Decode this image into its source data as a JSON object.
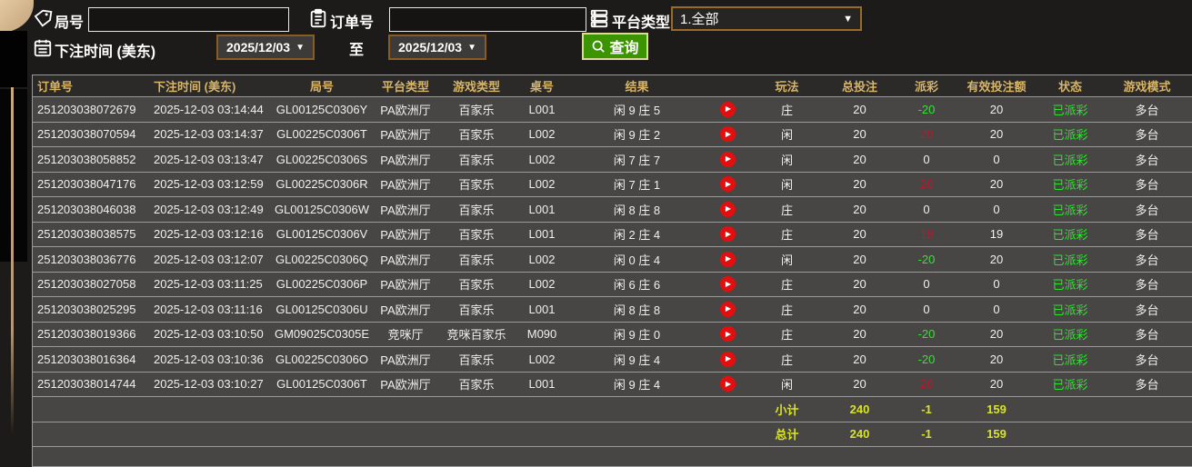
{
  "filters": {
    "round_no_label": "局号",
    "round_no_value": "",
    "order_no_label": "订单号",
    "order_no_value": "",
    "platform_label": "平台类型",
    "platform_value": "1.全部",
    "bet_time_label": "下注时间 (美东)",
    "date_from": "2025/12/03",
    "to_label": "至",
    "date_to": "2025/12/03",
    "query_label": "查询"
  },
  "colors": {
    "header_text": "#d7b468",
    "payout_positive": "#b51a31",
    "payout_negative": "#35e135",
    "status_green": "#2ee32e",
    "summary_yellow": "#d8e32a",
    "query_green": "#3c9400",
    "date_border_orange": "#8a5c22"
  },
  "table": {
    "columns": [
      "订单号",
      "下注时间 (美东)",
      "局号",
      "平台类型",
      "游戏类型",
      "桌号",
      "结果",
      "",
      "玩法",
      "总投注",
      "派彩",
      "有效投注额",
      "状态",
      "游戏模式"
    ],
    "rows": [
      {
        "order_no": "251203038072679",
        "bet_time": "2025-12-03 03:14:44",
        "round_no": "GL00125C0306Y",
        "platform": "PA欧洲厅",
        "game_type": "百家乐",
        "table_no": "L001",
        "result": "闲 9 庄 5",
        "bet_side": "庄",
        "total_bet": "20",
        "payout": "-20",
        "valid_bet": "20",
        "status": "已派彩",
        "mode": "多台"
      },
      {
        "order_no": "251203038070594",
        "bet_time": "2025-12-03 03:14:37",
        "round_no": "GL00225C0306T",
        "platform": "PA欧洲厅",
        "game_type": "百家乐",
        "table_no": "L002",
        "result": "闲 9 庄 2",
        "bet_side": "闲",
        "total_bet": "20",
        "payout": "20",
        "valid_bet": "20",
        "status": "已派彩",
        "mode": "多台"
      },
      {
        "order_no": "251203038058852",
        "bet_time": "2025-12-03 03:13:47",
        "round_no": "GL00225C0306S",
        "platform": "PA欧洲厅",
        "game_type": "百家乐",
        "table_no": "L002",
        "result": "闲 7 庄 7",
        "bet_side": "闲",
        "total_bet": "20",
        "payout": "0",
        "valid_bet": "0",
        "status": "已派彩",
        "mode": "多台"
      },
      {
        "order_no": "251203038047176",
        "bet_time": "2025-12-03 03:12:59",
        "round_no": "GL00225C0306R",
        "platform": "PA欧洲厅",
        "game_type": "百家乐",
        "table_no": "L002",
        "result": "闲 7 庄 1",
        "bet_side": "闲",
        "total_bet": "20",
        "payout": "20",
        "valid_bet": "20",
        "status": "已派彩",
        "mode": "多台"
      },
      {
        "order_no": "251203038046038",
        "bet_time": "2025-12-03 03:12:49",
        "round_no": "GL00125C0306W",
        "platform": "PA欧洲厅",
        "game_type": "百家乐",
        "table_no": "L001",
        "result": "闲 8 庄 8",
        "bet_side": "庄",
        "total_bet": "20",
        "payout": "0",
        "valid_bet": "0",
        "status": "已派彩",
        "mode": "多台"
      },
      {
        "order_no": "251203038038575",
        "bet_time": "2025-12-03 03:12:16",
        "round_no": "GL00125C0306V",
        "platform": "PA欧洲厅",
        "game_type": "百家乐",
        "table_no": "L001",
        "result": "闲 2 庄 4",
        "bet_side": "庄",
        "total_bet": "20",
        "payout": "19",
        "valid_bet": "19",
        "status": "已派彩",
        "mode": "多台"
      },
      {
        "order_no": "251203038036776",
        "bet_time": "2025-12-03 03:12:07",
        "round_no": "GL00225C0306Q",
        "platform": "PA欧洲厅",
        "game_type": "百家乐",
        "table_no": "L002",
        "result": "闲 0 庄 4",
        "bet_side": "闲",
        "total_bet": "20",
        "payout": "-20",
        "valid_bet": "20",
        "status": "已派彩",
        "mode": "多台"
      },
      {
        "order_no": "251203038027058",
        "bet_time": "2025-12-03 03:11:25",
        "round_no": "GL00225C0306P",
        "platform": "PA欧洲厅",
        "game_type": "百家乐",
        "table_no": "L002",
        "result": "闲 6 庄 6",
        "bet_side": "庄",
        "total_bet": "20",
        "payout": "0",
        "valid_bet": "0",
        "status": "已派彩",
        "mode": "多台"
      },
      {
        "order_no": "251203038025295",
        "bet_time": "2025-12-03 03:11:16",
        "round_no": "GL00125C0306U",
        "platform": "PA欧洲厅",
        "game_type": "百家乐",
        "table_no": "L001",
        "result": "闲 8 庄 8",
        "bet_side": "庄",
        "total_bet": "20",
        "payout": "0",
        "valid_bet": "0",
        "status": "已派彩",
        "mode": "多台"
      },
      {
        "order_no": "251203038019366",
        "bet_time": "2025-12-03 03:10:50",
        "round_no": "GM09025C0305E",
        "platform": "竞咪厅",
        "game_type": "竞咪百家乐",
        "table_no": "M090",
        "result": "闲 9 庄 0",
        "bet_side": "庄",
        "total_bet": "20",
        "payout": "-20",
        "valid_bet": "20",
        "status": "已派彩",
        "mode": "多台"
      },
      {
        "order_no": "251203038016364",
        "bet_time": "2025-12-03 03:10:36",
        "round_no": "GL00225C0306O",
        "platform": "PA欧洲厅",
        "game_type": "百家乐",
        "table_no": "L002",
        "result": "闲 9 庄 4",
        "bet_side": "庄",
        "total_bet": "20",
        "payout": "-20",
        "valid_bet": "20",
        "status": "已派彩",
        "mode": "多台"
      },
      {
        "order_no": "251203038014744",
        "bet_time": "2025-12-03 03:10:27",
        "round_no": "GL00125C0306T",
        "platform": "PA欧洲厅",
        "game_type": "百家乐",
        "table_no": "L001",
        "result": "闲 9 庄 4",
        "bet_side": "闲",
        "total_bet": "20",
        "payout": "20",
        "valid_bet": "20",
        "status": "已派彩",
        "mode": "多台"
      }
    ],
    "subtotal": {
      "label": "小计",
      "total_bet": "240",
      "payout": "-1",
      "valid_bet": "159"
    },
    "total": {
      "label": "总计",
      "total_bet": "240",
      "payout": "-1",
      "valid_bet": "159"
    }
  }
}
